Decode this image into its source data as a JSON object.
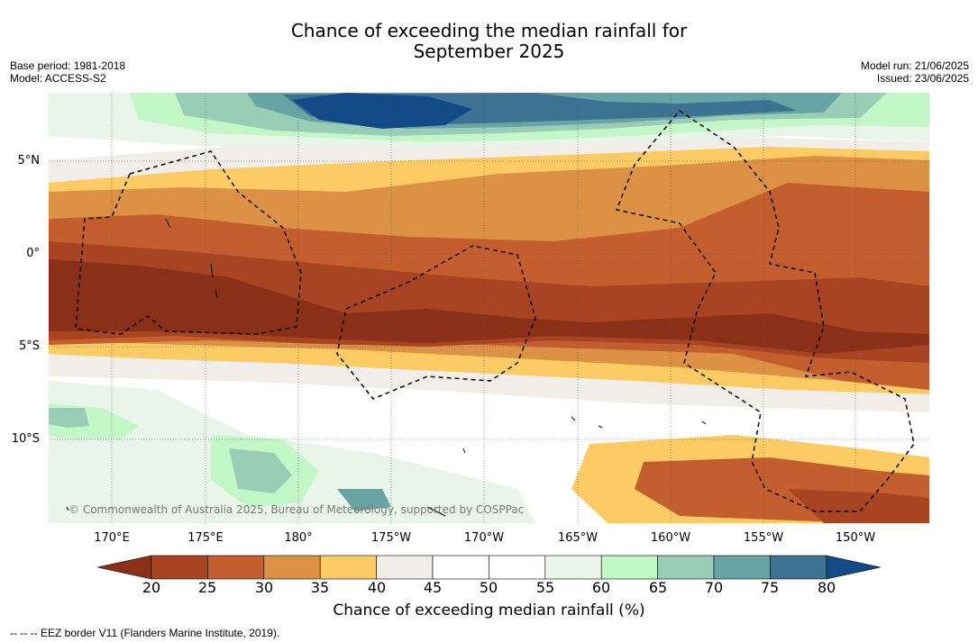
{
  "title": {
    "line1": "Chance of exceeding the median rainfall for",
    "line2": "September 2025"
  },
  "meta": {
    "base_period": "Base period: 1981-2018",
    "model": "Model: ACCESS-S2",
    "model_run": "Model run: 21/06/2025",
    "issued": "Issued: 23/06/2025"
  },
  "copyright": "© Commonwealth of Australia 2025, Bureau of Meteorology, supported by COSPPac",
  "latitude_labels": [
    "5°N",
    "0°",
    "5°S",
    "10°S"
  ],
  "longitude_labels": [
    "170°E",
    "175°E",
    "180°",
    "175°W",
    "170°W",
    "165°W",
    "160°W",
    "155°W",
    "150°W"
  ],
  "colorbar": {
    "ticks": [
      "20",
      "25",
      "30",
      "35",
      "40",
      "45",
      "50",
      "55",
      "60",
      "65",
      "70",
      "75",
      "80"
    ],
    "colors": [
      "#8b3018",
      "#a84422",
      "#c45e2e",
      "#dc9144",
      "#fccb63",
      "#f1ede8",
      "#ffffff",
      "#ffffff",
      "#e9f5e9",
      "#c3f7c8",
      "#99cdb5",
      "#68a4a4",
      "#3e7293",
      "#114a87"
    ],
    "label": "Chance of exceeding median rainfall (%)"
  },
  "footer": {
    "eez_note": "--  --  -- EEZ border V11 (Flanders Marine Institute, 2019)."
  }
}
